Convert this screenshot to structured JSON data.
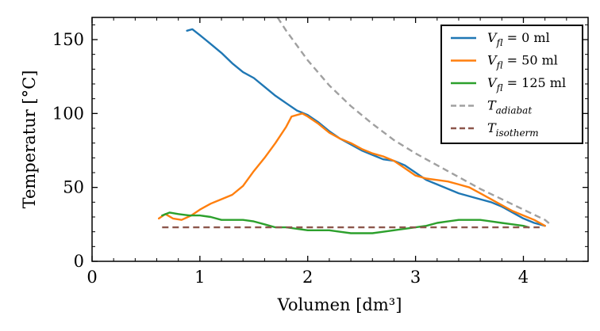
{
  "chart_data": {
    "type": "line",
    "xlabel": "Volumen [dm³]",
    "ylabel": "Temperatur [°C]",
    "xlim": [
      0,
      4.6
    ],
    "ylim": [
      0,
      165
    ],
    "xticks": [
      0,
      1,
      2,
      3,
      4
    ],
    "yticks": [
      0,
      50,
      100,
      150
    ],
    "grid": false,
    "legend_position": "top-right",
    "series": [
      {
        "name": "V_fl = 0 ml",
        "legend": {
          "sym": "V",
          "sub": "fl",
          "rest": " = 0 ml"
        },
        "color": "#1f77b4",
        "style": "solid",
        "points": [
          [
            0.88,
            156
          ],
          [
            0.93,
            157
          ],
          [
            1.0,
            153
          ],
          [
            1.1,
            147
          ],
          [
            1.2,
            141
          ],
          [
            1.3,
            134
          ],
          [
            1.4,
            128
          ],
          [
            1.5,
            124
          ],
          [
            1.6,
            118
          ],
          [
            1.7,
            112
          ],
          [
            1.8,
            107
          ],
          [
            1.9,
            102
          ],
          [
            2.0,
            99
          ],
          [
            2.1,
            94
          ],
          [
            2.2,
            88
          ],
          [
            2.3,
            83
          ],
          [
            2.4,
            79
          ],
          [
            2.5,
            75
          ],
          [
            2.6,
            72
          ],
          [
            2.7,
            69
          ],
          [
            2.8,
            68
          ],
          [
            2.9,
            65
          ],
          [
            3.0,
            60
          ],
          [
            3.1,
            55
          ],
          [
            3.2,
            52
          ],
          [
            3.3,
            49
          ],
          [
            3.4,
            46
          ],
          [
            3.5,
            44
          ],
          [
            3.6,
            42
          ],
          [
            3.7,
            40
          ],
          [
            3.8,
            37
          ],
          [
            3.9,
            33
          ],
          [
            4.0,
            29
          ],
          [
            4.1,
            26
          ],
          [
            4.2,
            24
          ]
        ]
      },
      {
        "name": "V_fl = 50 ml",
        "legend": {
          "sym": "V",
          "sub": "fl",
          "rest": " = 50 ml"
        },
        "color": "#ff7f0e",
        "style": "solid",
        "points": [
          [
            0.62,
            29
          ],
          [
            0.68,
            32
          ],
          [
            0.75,
            29
          ],
          [
            0.83,
            28
          ],
          [
            0.92,
            31
          ],
          [
            1.0,
            35
          ],
          [
            1.1,
            39
          ],
          [
            1.2,
            42
          ],
          [
            1.3,
            45
          ],
          [
            1.4,
            51
          ],
          [
            1.5,
            61
          ],
          [
            1.6,
            70
          ],
          [
            1.7,
            80
          ],
          [
            1.8,
            91
          ],
          [
            1.85,
            98
          ],
          [
            1.95,
            100
          ],
          [
            2.0,
            98
          ],
          [
            2.1,
            93
          ],
          [
            2.2,
            87
          ],
          [
            2.3,
            83
          ],
          [
            2.4,
            80
          ],
          [
            2.5,
            76
          ],
          [
            2.6,
            73
          ],
          [
            2.7,
            71
          ],
          [
            2.8,
            68
          ],
          [
            2.9,
            63
          ],
          [
            3.0,
            58
          ],
          [
            3.1,
            56
          ],
          [
            3.2,
            55
          ],
          [
            3.3,
            54
          ],
          [
            3.4,
            52
          ],
          [
            3.5,
            50
          ],
          [
            3.6,
            46
          ],
          [
            3.7,
            42
          ],
          [
            3.8,
            38
          ],
          [
            3.9,
            34
          ],
          [
            4.0,
            31
          ],
          [
            4.1,
            28
          ],
          [
            4.2,
            24
          ]
        ]
      },
      {
        "name": "V_fl = 125 ml",
        "legend": {
          "sym": "V",
          "sub": "fl",
          "rest": " = 125 ml"
        },
        "color": "#2ca02c",
        "style": "solid",
        "points": [
          [
            0.65,
            31
          ],
          [
            0.72,
            33
          ],
          [
            0.8,
            32
          ],
          [
            0.9,
            31
          ],
          [
            1.0,
            31
          ],
          [
            1.1,
            30
          ],
          [
            1.2,
            28
          ],
          [
            1.3,
            28
          ],
          [
            1.4,
            28
          ],
          [
            1.5,
            27
          ],
          [
            1.6,
            25
          ],
          [
            1.7,
            23
          ],
          [
            1.8,
            23
          ],
          [
            1.9,
            22
          ],
          [
            2.0,
            21
          ],
          [
            2.1,
            21
          ],
          [
            2.2,
            21
          ],
          [
            2.3,
            20
          ],
          [
            2.4,
            19
          ],
          [
            2.5,
            19
          ],
          [
            2.6,
            19
          ],
          [
            2.7,
            20
          ],
          [
            2.8,
            21
          ],
          [
            2.9,
            22
          ],
          [
            3.0,
            23
          ],
          [
            3.1,
            24
          ],
          [
            3.2,
            26
          ],
          [
            3.3,
            27
          ],
          [
            3.4,
            28
          ],
          [
            3.5,
            28
          ],
          [
            3.6,
            28
          ],
          [
            3.7,
            27
          ],
          [
            3.8,
            26
          ],
          [
            3.9,
            25
          ],
          [
            4.0,
            24
          ],
          [
            4.05,
            23
          ]
        ]
      },
      {
        "name": "T_adiabat",
        "legend": {
          "sym": "T",
          "sub": "adiabat",
          "rest": ""
        },
        "color": "#a0a0a0",
        "style": "dashed",
        "points": [
          [
            1.72,
            165
          ],
          [
            1.8,
            156
          ],
          [
            1.9,
            146
          ],
          [
            2.0,
            136
          ],
          [
            2.2,
            119
          ],
          [
            2.4,
            105
          ],
          [
            2.6,
            93
          ],
          [
            2.8,
            82
          ],
          [
            3.0,
            73
          ],
          [
            3.2,
            65
          ],
          [
            3.4,
            57
          ],
          [
            3.6,
            49
          ],
          [
            3.8,
            42
          ],
          [
            4.0,
            35
          ],
          [
            4.2,
            28
          ],
          [
            4.25,
            25
          ]
        ]
      },
      {
        "name": "T_isotherm",
        "legend": {
          "sym": "T",
          "sub": "isotherm",
          "rest": ""
        },
        "color": "#8c564b",
        "style": "dashed",
        "points": [
          [
            0.65,
            23
          ],
          [
            4.15,
            23
          ]
        ]
      }
    ]
  }
}
